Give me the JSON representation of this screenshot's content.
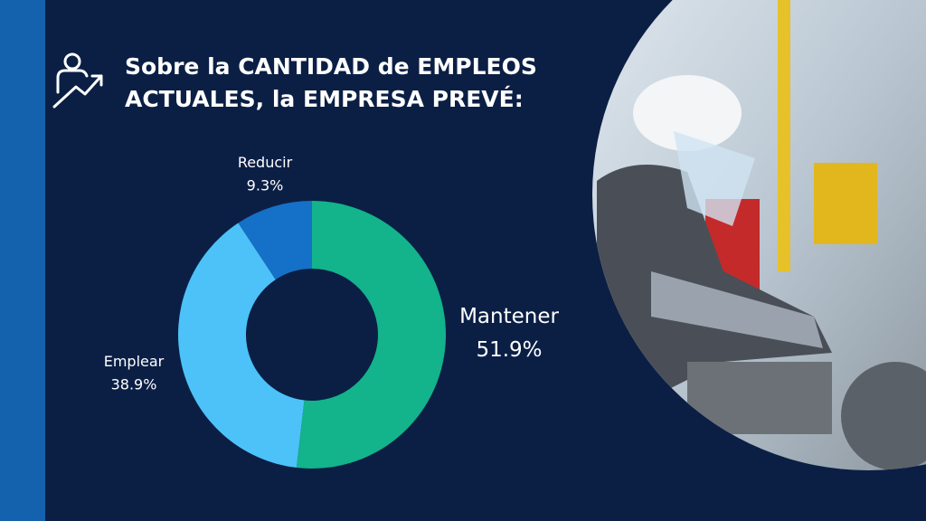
{
  "chart_data": {
    "type": "donut",
    "title": [
      "Sobre la CANTIDAD de EMPLEOS",
      "ACTUALES, la EMPRESA PREVÉ:"
    ],
    "categories": [
      "Mantener",
      "Emplear",
      "Reducir"
    ],
    "values": [
      51.9,
      38.9,
      9.3
    ],
    "value_labels": [
      "51.9%",
      "38.9%",
      "9.3%"
    ],
    "colors": [
      "#13b38b",
      "#4cc2f8",
      "#1570c8"
    ]
  }
}
